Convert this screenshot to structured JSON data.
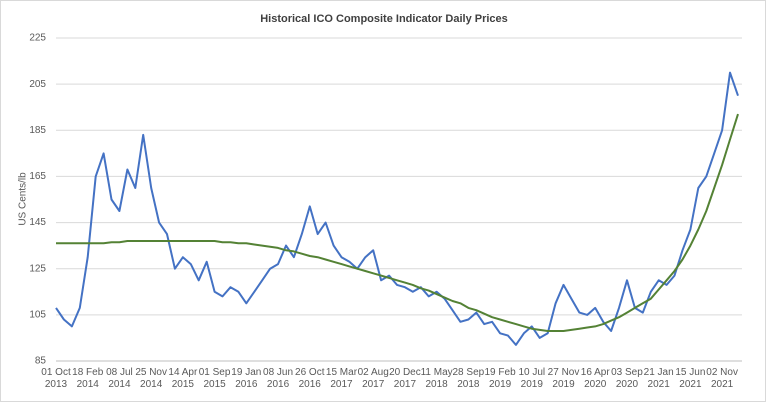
{
  "chart_data": {
    "type": "line",
    "title": "Historical ICO Composite Indicator Daily Prices",
    "y_label": "US Cents/lb",
    "categories": [
      "01 Oct 2013",
      null,
      null,
      null,
      "18 Feb 2014",
      null,
      null,
      null,
      "08 Jul 2014",
      null,
      null,
      null,
      "25 Nov 2014",
      null,
      null,
      null,
      "14 Apr 2015",
      null,
      null,
      null,
      "01 Sep 2015",
      null,
      null,
      null,
      "19 Jan 2016",
      null,
      null,
      null,
      "08 Jun 2016",
      null,
      null,
      null,
      "26 Oct 2016",
      null,
      null,
      null,
      "15 Mar 2017",
      null,
      null,
      null,
      "02 Aug 2017",
      null,
      null,
      null,
      "20 Dec 2017",
      null,
      null,
      null,
      "11 May 2018",
      null,
      null,
      null,
      "28 Sep 2018",
      null,
      null,
      null,
      "19 Feb 2019",
      null,
      null,
      null,
      "10 Jul 2019",
      null,
      null,
      null,
      "27 Nov 2019",
      null,
      null,
      null,
      "16 Apr 2020",
      null,
      null,
      null,
      "03 Sep 2020",
      null,
      null,
      null,
      "21 Jan 2021",
      null,
      null,
      null,
      "15 Jun 2021",
      null,
      null,
      null,
      "02 Nov 2021",
      null,
      null
    ],
    "series": [
      {
        "color": "#4472c4",
        "values": [
          108,
          103,
          100,
          108,
          130,
          165,
          175,
          155,
          150,
          168,
          160,
          183,
          160,
          145,
          140,
          125,
          130,
          127,
          120,
          128,
          115,
          113,
          117,
          115,
          110,
          115,
          120,
          125,
          127,
          135,
          130,
          140,
          152,
          140,
          145,
          135,
          130,
          128,
          125,
          130,
          133,
          120,
          122,
          118,
          117,
          115,
          117,
          113,
          115,
          112,
          107,
          102,
          103,
          106,
          101,
          102,
          97,
          96,
          92,
          97,
          100,
          95,
          97,
          110,
          118,
          112,
          106,
          105,
          108,
          102,
          98,
          108,
          120,
          108,
          106,
          115,
          120,
          118,
          122,
          133,
          142,
          160,
          165,
          175,
          185,
          210,
          200
        ]
      },
      {
        "color": "#548235",
        "values": [
          136,
          136,
          136,
          136,
          136,
          136,
          136,
          136.5,
          136.5,
          137,
          137,
          137,
          137,
          137,
          137,
          137,
          137,
          137,
          137,
          137,
          137,
          136.5,
          136.5,
          136,
          136,
          135.5,
          135,
          134.5,
          134,
          133,
          132.5,
          131.5,
          130.5,
          130,
          129,
          128,
          127,
          126,
          125,
          124,
          123,
          122,
          121,
          120,
          119,
          118,
          116.5,
          115.5,
          114,
          112.5,
          111,
          110,
          108,
          107,
          105.5,
          104,
          103,
          102,
          101,
          100,
          99,
          98.5,
          98,
          98,
          98,
          98.5,
          99,
          99.5,
          100,
          101,
          102.5,
          104,
          106,
          108,
          110,
          112,
          116,
          120,
          124,
          129,
          135,
          142,
          150,
          160,
          170,
          181,
          192
        ]
      }
    ],
    "ylim": [
      85,
      225
    ],
    "yticks": [
      85,
      105,
      125,
      145,
      165,
      185,
      205,
      225
    ],
    "grid": true
  }
}
